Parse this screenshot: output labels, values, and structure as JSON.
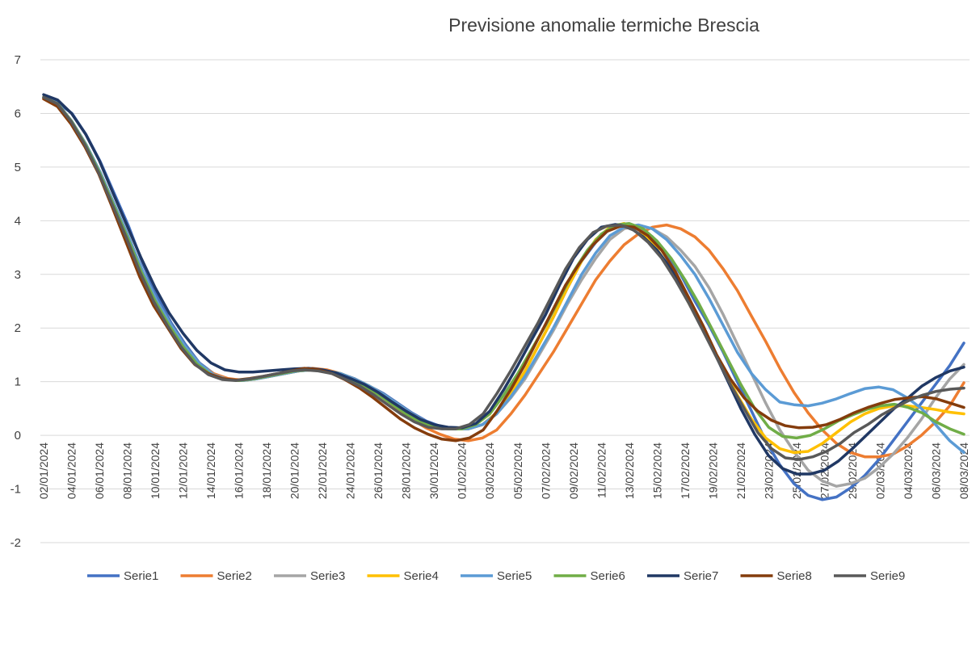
{
  "chart_data": {
    "type": "line",
    "title": "Previsione anomalie termiche Brescia",
    "xlabel": "",
    "ylabel": "",
    "ylim": [
      -2,
      7
    ],
    "yticks": [
      -2,
      -1,
      0,
      1,
      2,
      3,
      4,
      5,
      6,
      7
    ],
    "grid": true,
    "legend_position": "bottom",
    "x_tick_labels": [
      "02/01/2024",
      "04/01/2024",
      "06/01/2024",
      "08/01/2024",
      "10/01/2024",
      "12/01/2024",
      "14/01/2024",
      "16/01/2024",
      "18/01/2024",
      "20/01/2024",
      "22/01/2024",
      "24/01/2024",
      "26/01/2024",
      "28/01/2024",
      "30/01/2024",
      "01/02/2024",
      "03/02/2024",
      "05/02/2024",
      "07/02/2024",
      "09/02/2024",
      "11/02/2024",
      "13/02/2024",
      "15/02/2024",
      "17/02/2024",
      "19/02/2024",
      "21/02/2024",
      "23/02/2024",
      "25/02/2024",
      "27/02/2024",
      "29/02/2024",
      "02/03/2024",
      "04/03/2024",
      "06/03/2024",
      "08/03/2024"
    ],
    "series": [
      {
        "name": "Serie1",
        "color": "#4472C4",
        "values": [
          6.3,
          6.2,
          6.0,
          5.6,
          5.1,
          4.5,
          3.9,
          3.2,
          2.6,
          2.1,
          1.7,
          1.35,
          1.15,
          1.05,
          1.02,
          1.05,
          1.1,
          1.15,
          1.2,
          1.22,
          1.2,
          1.15,
          1.05,
          0.92,
          0.78,
          0.6,
          0.42,
          0.27,
          0.17,
          0.13,
          0.12,
          0.2,
          0.4,
          0.75,
          1.2,
          1.7,
          2.2,
          2.75,
          3.25,
          3.6,
          3.85,
          3.93,
          3.9,
          3.7,
          3.4,
          3.0,
          2.5,
          2.05,
          1.55,
          1.0,
          0.45,
          -0.1,
          -0.55,
          -0.9,
          -1.12,
          -1.2,
          -1.15,
          -0.98,
          -0.75,
          -0.45,
          -0.1,
          0.25,
          0.6,
          0.95,
          1.3,
          1.72
        ]
      },
      {
        "name": "Serie2",
        "color": "#ED7D31",
        "values": [
          6.27,
          6.13,
          5.8,
          5.38,
          4.88,
          4.25,
          3.6,
          2.95,
          2.42,
          2.02,
          1.62,
          1.32,
          1.15,
          1.06,
          1.03,
          1.06,
          1.1,
          1.15,
          1.2,
          1.25,
          1.22,
          1.15,
          1.03,
          0.88,
          0.7,
          0.5,
          0.3,
          0.14,
          0.02,
          -0.07,
          -0.1,
          -0.05,
          0.1,
          0.4,
          0.75,
          1.15,
          1.55,
          2.0,
          2.45,
          2.9,
          3.25,
          3.55,
          3.75,
          3.88,
          3.92,
          3.85,
          3.7,
          3.45,
          3.1,
          2.7,
          2.22,
          1.75,
          1.25,
          0.8,
          0.42,
          0.1,
          -0.15,
          -0.32,
          -0.4,
          -0.4,
          -0.35,
          -0.2,
          0.0,
          0.25,
          0.55,
          0.98
        ]
      },
      {
        "name": "Serie3",
        "color": "#A5A5A5",
        "values": [
          6.3,
          6.18,
          5.85,
          5.42,
          4.9,
          4.3,
          3.7,
          3.05,
          2.5,
          2.05,
          1.65,
          1.33,
          1.13,
          1.04,
          1.02,
          1.05,
          1.1,
          1.15,
          1.2,
          1.22,
          1.2,
          1.15,
          1.04,
          0.92,
          0.76,
          0.58,
          0.4,
          0.25,
          0.15,
          0.12,
          0.12,
          0.2,
          0.4,
          0.7,
          1.05,
          1.5,
          1.95,
          2.45,
          2.9,
          3.3,
          3.65,
          3.85,
          3.92,
          3.85,
          3.7,
          3.45,
          3.15,
          2.75,
          2.25,
          1.7,
          1.15,
          0.6,
          0.1,
          -0.3,
          -0.65,
          -0.85,
          -0.95,
          -0.9,
          -0.8,
          -0.6,
          -0.35,
          -0.05,
          0.3,
          0.7,
          1.05,
          1.32
        ]
      },
      {
        "name": "Serie4",
        "color": "#FFC000",
        "values": [
          6.3,
          6.18,
          5.85,
          5.42,
          4.9,
          4.3,
          3.7,
          3.05,
          2.5,
          2.05,
          1.65,
          1.33,
          1.13,
          1.04,
          1.02,
          1.05,
          1.1,
          1.15,
          1.2,
          1.22,
          1.2,
          1.15,
          1.04,
          0.92,
          0.76,
          0.58,
          0.4,
          0.25,
          0.15,
          0.12,
          0.12,
          0.2,
          0.42,
          0.78,
          1.2,
          1.7,
          2.2,
          2.75,
          3.25,
          3.65,
          3.88,
          3.95,
          3.85,
          3.6,
          3.2,
          2.75,
          2.25,
          1.75,
          1.25,
          0.75,
          0.3,
          -0.05,
          -0.25,
          -0.32,
          -0.3,
          -0.15,
          0.05,
          0.25,
          0.4,
          0.5,
          0.55,
          0.55,
          0.52,
          0.48,
          0.43,
          0.4
        ]
      },
      {
        "name": "Serie5",
        "color": "#5B9BD5",
        "values": [
          6.3,
          6.18,
          5.85,
          5.42,
          4.9,
          4.3,
          3.7,
          3.05,
          2.5,
          2.05,
          1.65,
          1.33,
          1.13,
          1.04,
          1.02,
          1.05,
          1.1,
          1.15,
          1.2,
          1.22,
          1.2,
          1.15,
          1.04,
          0.92,
          0.76,
          0.58,
          0.4,
          0.25,
          0.15,
          0.12,
          0.12,
          0.2,
          0.4,
          0.72,
          1.1,
          1.55,
          2.0,
          2.5,
          3.0,
          3.4,
          3.72,
          3.88,
          3.92,
          3.85,
          3.65,
          3.35,
          3.0,
          2.55,
          2.05,
          1.55,
          1.15,
          0.85,
          0.62,
          0.57,
          0.55,
          0.6,
          0.68,
          0.78,
          0.87,
          0.9,
          0.85,
          0.7,
          0.5,
          0.2,
          -0.1,
          -0.32
        ]
      },
      {
        "name": "Serie6",
        "color": "#70AD47",
        "values": [
          6.3,
          6.18,
          5.85,
          5.42,
          4.9,
          4.3,
          3.7,
          3.05,
          2.5,
          2.05,
          1.65,
          1.33,
          1.13,
          1.04,
          1.02,
          1.05,
          1.1,
          1.15,
          1.2,
          1.22,
          1.2,
          1.15,
          1.04,
          0.92,
          0.76,
          0.58,
          0.4,
          0.25,
          0.15,
          0.12,
          0.12,
          0.2,
          0.4,
          0.75,
          1.15,
          1.6,
          2.05,
          2.55,
          3.05,
          3.45,
          3.75,
          3.92,
          3.95,
          3.85,
          3.62,
          3.3,
          2.9,
          2.45,
          1.95,
          1.45,
          0.95,
          0.5,
          0.15,
          -0.02,
          -0.05,
          0.0,
          0.12,
          0.27,
          0.38,
          0.48,
          0.55,
          0.58,
          0.52,
          0.42,
          0.25,
          0.12,
          0.02
        ]
      },
      {
        "name": "Serie7",
        "color": "#203864",
        "values": [
          6.35,
          6.25,
          6.0,
          5.62,
          5.12,
          4.5,
          3.9,
          3.3,
          2.75,
          2.28,
          1.9,
          1.58,
          1.35,
          1.22,
          1.18,
          1.18,
          1.2,
          1.22,
          1.24,
          1.25,
          1.22,
          1.16,
          1.06,
          0.95,
          0.8,
          0.62,
          0.45,
          0.3,
          0.2,
          0.15,
          0.14,
          0.22,
          0.45,
          0.85,
          1.3,
          1.78,
          2.25,
          2.8,
          3.3,
          3.65,
          3.88,
          3.93,
          3.88,
          3.7,
          3.45,
          3.1,
          2.65,
          2.15,
          1.6,
          1.05,
          0.5,
          0.02,
          -0.38,
          -0.62,
          -0.72,
          -0.72,
          -0.65,
          -0.48,
          -0.25,
          0.0,
          0.25,
          0.5,
          0.7,
          0.92,
          1.08,
          1.2,
          1.27
        ]
      },
      {
        "name": "Serie8",
        "color": "#843C0C",
        "values": [
          6.27,
          6.13,
          5.8,
          5.38,
          4.88,
          4.25,
          3.6,
          2.95,
          2.42,
          2.02,
          1.62,
          1.32,
          1.15,
          1.06,
          1.03,
          1.06,
          1.1,
          1.15,
          1.2,
          1.25,
          1.22,
          1.15,
          1.03,
          0.88,
          0.7,
          0.5,
          0.3,
          0.14,
          0.02,
          -0.07,
          -0.1,
          -0.05,
          0.1,
          0.45,
          0.85,
          1.3,
          1.8,
          2.3,
          2.8,
          3.2,
          3.55,
          3.8,
          3.9,
          3.88,
          3.72,
          3.45,
          3.05,
          2.55,
          2.05,
          1.5,
          1.05,
          0.7,
          0.45,
          0.28,
          0.18,
          0.14,
          0.15,
          0.2,
          0.3,
          0.42,
          0.52,
          0.6,
          0.67,
          0.7,
          0.72,
          0.68,
          0.6,
          0.52
        ]
      },
      {
        "name": "Serie9",
        "color": "#595959",
        "values": [
          6.3,
          6.18,
          5.85,
          5.42,
          4.9,
          4.3,
          3.7,
          3.05,
          2.5,
          2.05,
          1.65,
          1.33,
          1.13,
          1.04,
          1.02,
          1.05,
          1.1,
          1.15,
          1.2,
          1.22,
          1.2,
          1.15,
          1.04,
          0.92,
          0.76,
          0.58,
          0.4,
          0.25,
          0.15,
          0.12,
          0.12,
          0.2,
          0.4,
          0.78,
          1.2,
          1.65,
          2.1,
          2.6,
          3.1,
          3.5,
          3.78,
          3.9,
          3.92,
          3.82,
          3.6,
          3.3,
          2.9,
          2.45,
          1.95,
          1.45,
          0.95,
          0.5,
          0.05,
          -0.25,
          -0.42,
          -0.45,
          -0.4,
          -0.3,
          -0.15,
          0.05,
          0.2,
          0.38,
          0.52,
          0.65,
          0.75,
          0.82,
          0.86,
          0.88
        ]
      }
    ]
  }
}
